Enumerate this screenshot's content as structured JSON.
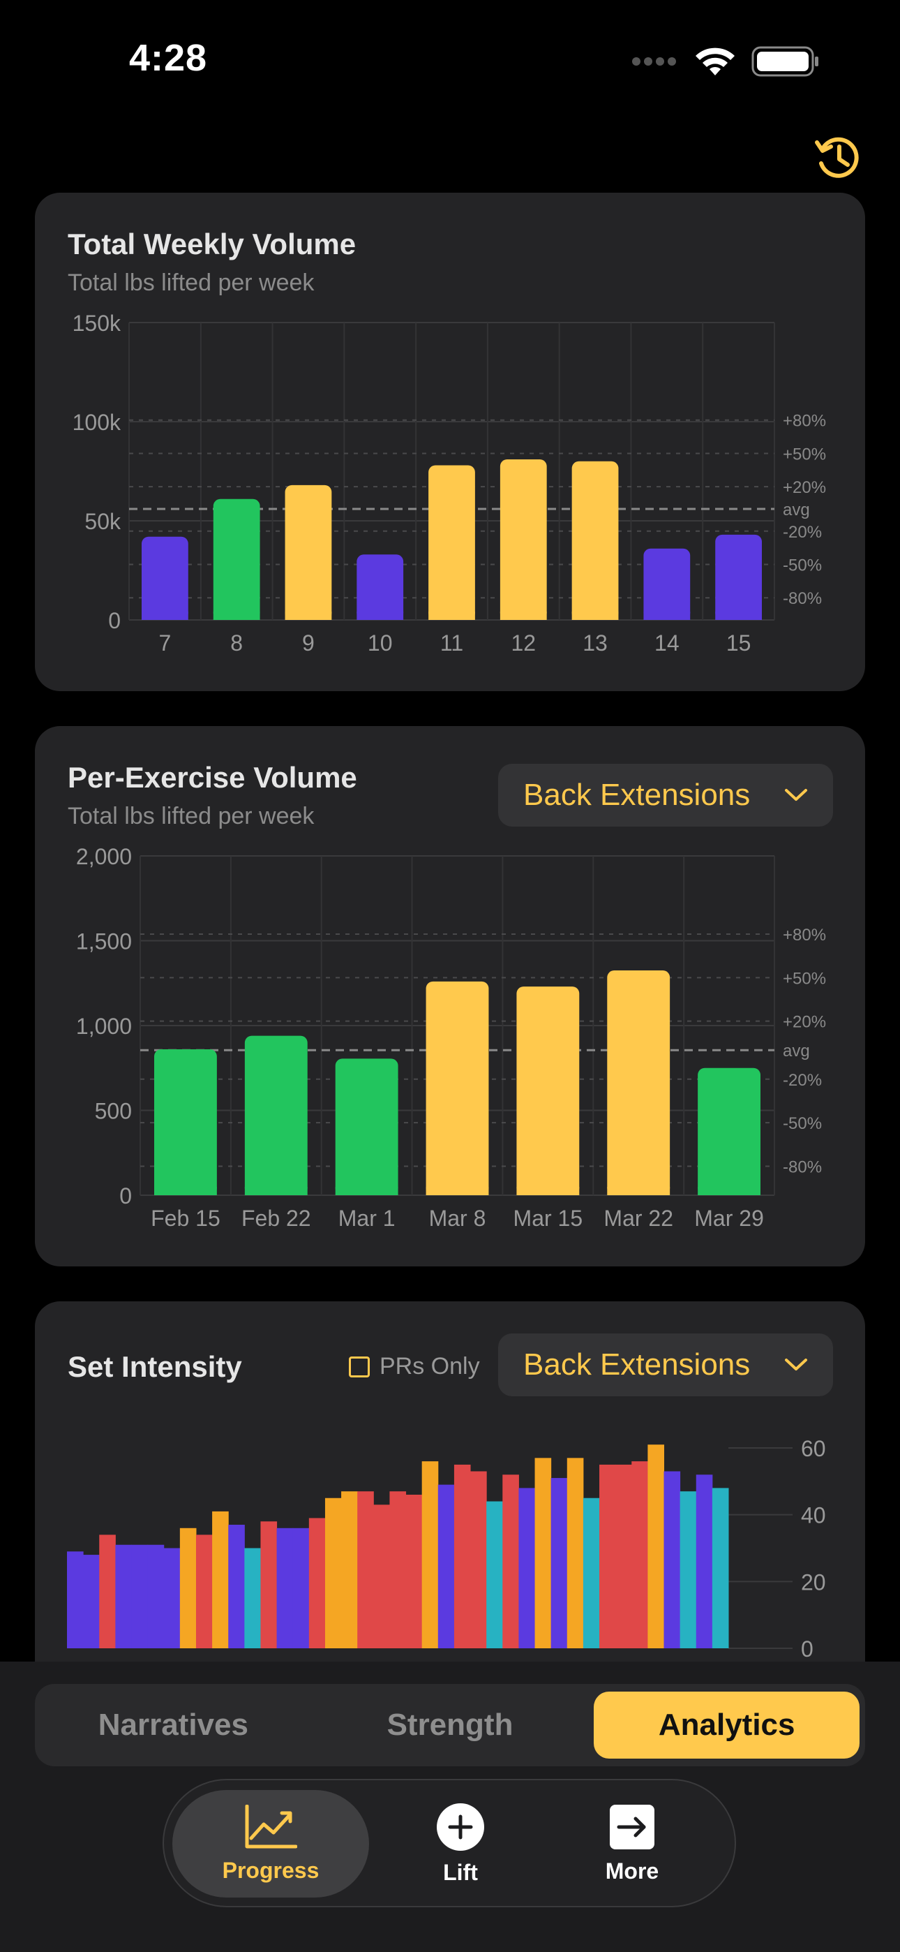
{
  "status": {
    "time": "4:28"
  },
  "icons": {
    "history": "history-icon",
    "wifi": "wifi-icon",
    "battery": "battery-icon",
    "signal": "cellular-signal-icon",
    "chevron": "chevron-down-icon",
    "progress": "line-chart-icon",
    "lift": "plus-circle-icon",
    "more": "arrow-right-square-icon"
  },
  "colors": {
    "accent": "#ffc94d",
    "green": "#22c55e",
    "purple": "#5b3ae0",
    "red": "#e04848",
    "teal": "#27b2c2"
  },
  "weekly": {
    "title": "Total Weekly Volume",
    "subtitle": "Total lbs lifted per week",
    "y_ticks": [
      "150k",
      "100k",
      "50k",
      "0"
    ],
    "pct_labels": [
      "+80%",
      "+50%",
      "+20%",
      "avg",
      "-20%",
      "-50%",
      "-80%"
    ]
  },
  "per_exercise": {
    "title": "Per-Exercise Volume",
    "subtitle": "Total lbs lifted per week",
    "dropdown": "Back Extensions",
    "y_ticks": [
      "2,000",
      "1,500",
      "1,000",
      "500",
      "0"
    ],
    "pct_labels": [
      "+80%",
      "+50%",
      "+20%",
      "avg",
      "-20%",
      "-50%",
      "-80%"
    ]
  },
  "intensity": {
    "title": "Set Intensity",
    "pr_toggle": "PRs Only",
    "dropdown": "Back Extensions",
    "y_ticks": [
      "60",
      "40",
      "20",
      "0"
    ]
  },
  "segments": [
    "Narratives",
    "Strength",
    "Analytics"
  ],
  "tabs": {
    "progress": "Progress",
    "lift": "Lift",
    "more": "More"
  },
  "chart_data": [
    {
      "type": "bar",
      "title": "Total Weekly Volume",
      "subtitle": "Total lbs lifted per week",
      "categories": [
        "7",
        "8",
        "9",
        "10",
        "11",
        "12",
        "13",
        "14",
        "15"
      ],
      "values": [
        42000,
        61000,
        68000,
        33000,
        78000,
        81000,
        80000,
        36000,
        43000
      ],
      "bar_colors": [
        "#5b3ae0",
        "#22c55e",
        "#ffc94d",
        "#5b3ae0",
        "#ffc94d",
        "#ffc94d",
        "#ffc94d",
        "#5b3ae0",
        "#5b3ae0"
      ],
      "ylim": [
        0,
        150000
      ],
      "average": 56000,
      "grid": true
    },
    {
      "type": "bar",
      "title": "Per-Exercise Volume",
      "subtitle": "Total lbs lifted per week",
      "categories": [
        "Feb 15",
        "Feb 22",
        "Mar 1",
        "Mar 8",
        "Mar 15",
        "Mar 22",
        "Mar 29"
      ],
      "values": [
        860,
        940,
        805,
        1260,
        1230,
        1325,
        750
      ],
      "bar_colors": [
        "#22c55e",
        "#22c55e",
        "#22c55e",
        "#ffc94d",
        "#ffc94d",
        "#ffc94d",
        "#22c55e"
      ],
      "ylim": [
        0,
        2000
      ],
      "average": 855,
      "grid": true
    },
    {
      "type": "bar",
      "title": "Set Intensity",
      "ylim": [
        0,
        60
      ],
      "y_axis_side": "right",
      "values": [
        29,
        28,
        34,
        31,
        31,
        31,
        30,
        36,
        34,
        41,
        37,
        30,
        38,
        36,
        36,
        39,
        45,
        47,
        47,
        43,
        47,
        46,
        56,
        49,
        55,
        53,
        44,
        52,
        48,
        57,
        51,
        57,
        45,
        55,
        55,
        56,
        61,
        53,
        47,
        52,
        48
      ],
      "bar_colors": [
        "#5b3ae0",
        "#5b3ae0",
        "#e04848",
        "#5b3ae0",
        "#5b3ae0",
        "#5b3ae0",
        "#5b3ae0",
        "#f5a623",
        "#e04848",
        "#f5a623",
        "#5b3ae0",
        "#27b2c2",
        "#e04848",
        "#5b3ae0",
        "#5b3ae0",
        "#e04848",
        "#f5a623",
        "#f5a623",
        "#e04848",
        "#e04848",
        "#e04848",
        "#e04848",
        "#f5a623",
        "#5b3ae0",
        "#e04848",
        "#e04848",
        "#27b2c2",
        "#e04848",
        "#5b3ae0",
        "#f5a623",
        "#5b3ae0",
        "#f5a623",
        "#27b2c2",
        "#e04848",
        "#e04848",
        "#e04848",
        "#f5a623",
        "#5b3ae0",
        "#27b2c2",
        "#5b3ae0",
        "#27b2c2"
      ],
      "grid": true
    }
  ]
}
